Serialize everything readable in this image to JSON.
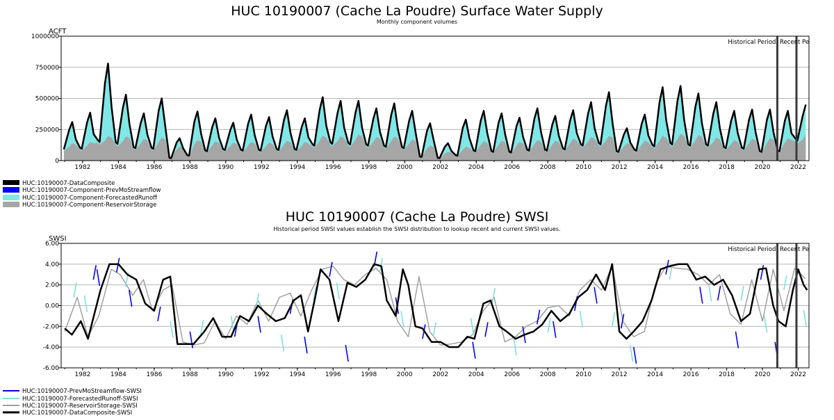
{
  "chart_data": [
    {
      "type": "area",
      "title": "HUC 10190007 (Cache La Poudre) Surface Water Supply",
      "subtitle": "Monthly component volumes",
      "ylabel": "ACFT",
      "ylim": [
        0,
        1000000
      ],
      "yticks": [
        "1000000",
        "750000",
        "500000",
        "250000",
        "0"
      ],
      "ytick_values": [
        1000000,
        750000,
        500000,
        250000,
        0
      ],
      "xlim": [
        1980.8,
        2022.6
      ],
      "xticks": [
        "1982",
        "1984",
        "1986",
        "1988",
        "1990",
        "1992",
        "1994",
        "1996",
        "1998",
        "2000",
        "2002",
        "2004",
        "2006",
        "2008",
        "2010",
        "2012",
        "2014",
        "2016",
        "2018",
        "2020",
        "2022"
      ],
      "period_lines": [
        2020.83,
        2021.9
      ],
      "period_labels": [
        "Historical Period",
        "Recent Pe"
      ],
      "grid": true,
      "legend_placement": "below",
      "annual_peaks": {
        "x": [
          1981,
          1982,
          1983,
          1984,
          1985,
          1986,
          1987,
          1988,
          1989,
          1990,
          1991,
          1992,
          1993,
          1994,
          1995,
          1996,
          1997,
          1998,
          1999,
          2000,
          2001,
          2002,
          2003,
          2004,
          2005,
          2006,
          2007,
          2008,
          2009,
          2010,
          2011,
          2012,
          2013,
          2014,
          2015,
          2016,
          2017,
          2018,
          2019,
          2020,
          2021,
          2022
        ],
        "composite_peak": [
          310000,
          385000,
          780000,
          530000,
          380000,
          500000,
          180000,
          395000,
          340000,
          305000,
          370000,
          350000,
          405000,
          340000,
          510000,
          480000,
          480000,
          420000,
          460000,
          400000,
          300000,
          140000,
          330000,
          400000,
          380000,
          345000,
          420000,
          360000,
          405000,
          470000,
          550000,
          260000,
          370000,
          590000,
          600000,
          540000,
          470000,
          400000,
          410000,
          410000,
          400000,
          450000
        ],
        "reservoir_storage_peak": [
          140000,
          150000,
          200000,
          195000,
          175000,
          185000,
          110000,
          165000,
          155000,
          145000,
          150000,
          145000,
          160000,
          150000,
          200000,
          195000,
          210000,
          190000,
          195000,
          170000,
          120000,
          70000,
          110000,
          155000,
          160000,
          150000,
          165000,
          160000,
          175000,
          190000,
          200000,
          140000,
          160000,
          200000,
          215000,
          205000,
          185000,
          165000,
          175000,
          180000,
          180000,
          210000
        ],
        "composite_trough": [
          90000,
          95000,
          150000,
          135000,
          100000,
          95000,
          20000,
          40000,
          75000,
          85000,
          80000,
          80000,
          85000,
          85000,
          120000,
          135000,
          130000,
          120000,
          110000,
          100000,
          30000,
          20000,
          40000,
          75000,
          70000,
          65000,
          80000,
          80000,
          90000,
          120000,
          130000,
          70000,
          80000,
          115000,
          130000,
          120000,
          120000,
          100000,
          95000,
          70000,
          75000,
          160000
        ]
      },
      "series": [
        {
          "name": "HUC:10190007-DataComposite",
          "color": "#000000"
        },
        {
          "name": "HUC:10190007-Component-PrevMoStreamflow",
          "color": "#0000ff"
        },
        {
          "name": "HUC:10190007-Component-ForecastedRunoff",
          "color": "#80e6e6"
        },
        {
          "name": "HUC:10190007-Component-ReservoirStorage",
          "color": "#a6a6a6"
        }
      ]
    },
    {
      "type": "line",
      "title": "HUC 10190007 (Cache La Poudre) SWSI",
      "subtitle": "Historical period SWSI values establish the SWSI distribution to lookup recent and current SWSI values.",
      "ylabel": "SWSI",
      "ylim": [
        -6,
        6
      ],
      "yticks": [
        "6.00",
        "4.00",
        "2.00",
        "0.00",
        "-2.00",
        "-4.00",
        "-6.00"
      ],
      "ytick_values": [
        6,
        4,
        2,
        0,
        -2,
        -4,
        -6
      ],
      "xlim": [
        1980.8,
        2022.6
      ],
      "xticks": [
        "1982",
        "1984",
        "1986",
        "1988",
        "1990",
        "1992",
        "1994",
        "1996",
        "1998",
        "2000",
        "2002",
        "2004",
        "2006",
        "2008",
        "2010",
        "2012",
        "2014",
        "2016",
        "2018",
        "2020",
        "2022"
      ],
      "period_lines": [
        2020.83,
        2021.9
      ],
      "period_labels": [
        "Historical Period",
        "Recent Pe"
      ],
      "grid": true,
      "legend_placement": "below",
      "series": [
        {
          "name": "HUC:10190007-PrevMoStreamflow-SWSI",
          "color": "#0000ff",
          "x": [
            1982.6,
            1982.8,
            1983.9,
            1984.6,
            1986.2,
            1988.0,
            1990.5,
            1991.8,
            1993.6,
            1994.4,
            1995.8,
            1996.7,
            1998.3,
            1999.5,
            2001.0,
            2003.8,
            2004.5,
            2006.6,
            2007.4,
            2008.3,
            2009.5,
            2010.6,
            2012.1,
            2012.8,
            2014.6,
            2016.5,
            2017.5,
            2018.5,
            2019.9,
            2020.7
          ],
          "y": [
            2.5,
            3.5,
            3.2,
            1.5,
            -1.5,
            -2.5,
            -3.0,
            -1.0,
            -0.8,
            -3.0,
            2.8,
            -3.8,
            3.8,
            0.8,
            -3.2,
            -3.5,
            -3.0,
            -2.0,
            -1.8,
            -1.5,
            -0.5,
            1.8,
            -2.2,
            -4.0,
            3.0,
            1.8,
            0.5,
            -2.5,
            2.5,
            -3.5
          ]
        },
        {
          "name": "HUC:10190007-ForecastedRunoff-SWSI",
          "color": "#7fe0e0",
          "x": [
            1981.5,
            1982.1,
            1984.4,
            1986.9,
            1988.6,
            1990.3,
            1991.7,
            1993.1,
            1994.9,
            1996.2,
            1998.6,
            1999.8,
            2001.6,
            2003.7,
            2004.9,
            2006.1,
            2008.0,
            2009.8,
            2011.6,
            2012.6,
            2014.8,
            2017.0,
            2018.8,
            2020.1,
            2021.2,
            2022.3
          ],
          "y": [
            0.8,
            1.0,
            1.8,
            -1.5,
            -2.8,
            -1.0,
            -0.2,
            -2.8,
            0.5,
            2.2,
            3.2,
            -0.5,
            -3.0,
            -1.2,
            0.3,
            -3.2,
            -2.6,
            -0.5,
            -2.0,
            -3.8,
            2.5,
            2.0,
            0.5,
            -1.0,
            1.5,
            -0.4
          ]
        },
        {
          "name": "HUC:10190007-ReservoirStorage-SWSI",
          "color": "#a0a0a0",
          "x": [
            1981.0,
            1981.7,
            1982.3,
            1982.9,
            1983.6,
            1984.1,
            1984.8,
            1985.4,
            1985.9,
            1986.5,
            1987.0,
            1987.6,
            1988.2,
            1988.8,
            1989.4,
            1990.0,
            1990.6,
            1991.2,
            1991.8,
            1992.4,
            1993.0,
            1993.6,
            1994.2,
            1994.8,
            1995.4,
            1996.0,
            1996.6,
            1997.2,
            1997.8,
            1998.4,
            1999.0,
            1999.6,
            2000.2,
            2000.8,
            2001.4,
            2002.0,
            2002.6,
            2003.2,
            2003.8,
            2004.4,
            2005.0,
            2005.6,
            2006.2,
            2006.8,
            2007.4,
            2008.0,
            2008.6,
            2009.2,
            2009.8,
            2010.4,
            2011.0,
            2011.6,
            2012.2,
            2012.8,
            2013.4,
            2014.0,
            2014.6,
            2015.2,
            2015.8,
            2016.4,
            2017.0,
            2017.6,
            2018.2,
            2018.8,
            2019.4,
            2020.0,
            2020.6,
            2021.2,
            2021.8,
            2022.4
          ],
          "y": [
            -2.5,
            0.8,
            -3.0,
            -1.0,
            3.5,
            3.0,
            1.0,
            2.5,
            -0.5,
            1.5,
            2.0,
            -3.5,
            -3.8,
            -3.6,
            -1.5,
            -3.2,
            -1.0,
            -1.8,
            0.5,
            -1.5,
            0.8,
            1.2,
            -1.0,
            1.5,
            3.5,
            3.8,
            2.5,
            2.0,
            3.0,
            3.6,
            2.5,
            -1.5,
            -3.0,
            2.8,
            -2.5,
            -3.8,
            -3.7,
            -3.5,
            -2.8,
            -0.5,
            0.8,
            -3.5,
            -3.0,
            -2.0,
            -1.5,
            -0.2,
            0.0,
            -1.0,
            1.5,
            2.5,
            1.5,
            3.8,
            -1.5,
            -3.0,
            -2.5,
            2.0,
            3.8,
            3.6,
            3.5,
            3.0,
            2.0,
            3.0,
            -0.8,
            -1.8,
            2.5,
            -1.5,
            3.5,
            -0.5,
            3.6,
            2.6
          ]
        },
        {
          "name": "HUC:10190007-DataComposite-SWSI",
          "color": "#000000",
          "x": [
            1981.0,
            1981.4,
            1981.9,
            1982.3,
            1982.7,
            1983.0,
            1983.5,
            1984.0,
            1984.5,
            1985.0,
            1985.5,
            1986.0,
            1986.5,
            1986.9,
            1987.3,
            1987.9,
            1988.2,
            1988.8,
            1989.3,
            1989.8,
            1990.3,
            1990.8,
            1991.3,
            1991.8,
            1992.3,
            1992.8,
            1993.3,
            1993.8,
            1994.2,
            1994.6,
            1995.0,
            1995.3,
            1995.8,
            1996.3,
            1996.8,
            1997.3,
            1997.8,
            1998.3,
            1998.7,
            1999.0,
            1999.5,
            1999.9,
            2000.2,
            2000.6,
            2001.0,
            2001.5,
            2002.0,
            2002.5,
            2003.0,
            2003.5,
            2003.9,
            2004.4,
            2004.8,
            2005.3,
            2005.7,
            2006.2,
            2006.7,
            2007.2,
            2007.7,
            2008.2,
            2008.7,
            2009.2,
            2009.7,
            2010.2,
            2010.7,
            2011.2,
            2011.6,
            2012.0,
            2012.4,
            2012.8,
            2013.3,
            2013.8,
            2014.3,
            2014.8,
            2015.3,
            2015.8,
            2016.3,
            2016.8,
            2017.3,
            2017.8,
            2018.3,
            2018.8,
            2019.3,
            2019.8,
            2020.2,
            2020.6,
            2020.9,
            2021.3,
            2021.7,
            2022.0,
            2022.3,
            2022.5
          ],
          "y": [
            -2.2,
            -2.8,
            -1.5,
            -3.2,
            -0.5,
            1.5,
            4.0,
            4.0,
            3.0,
            2.5,
            0.2,
            -0.5,
            2.5,
            2.8,
            -3.7,
            -3.7,
            -3.7,
            -2.5,
            -1.2,
            -3.0,
            -3.0,
            -1.0,
            -1.5,
            0.0,
            -0.8,
            -1.5,
            -1.2,
            0.5,
            1.0,
            -2.5,
            0.8,
            3.5,
            2.5,
            -1.5,
            2.2,
            1.8,
            2.5,
            4.0,
            3.8,
            0.5,
            -1.0,
            3.5,
            2.0,
            -2.0,
            -2.2,
            -3.5,
            -3.5,
            -4.0,
            -4.0,
            -3.0,
            -3.2,
            0.2,
            0.5,
            -2.0,
            -2.5,
            -3.2,
            -2.8,
            -2.5,
            -1.8,
            -0.5,
            -1.5,
            -0.8,
            0.8,
            1.5,
            3.0,
            1.5,
            4.0,
            -2.5,
            -3.2,
            -2.5,
            -1.5,
            0.5,
            3.5,
            3.8,
            4.0,
            4.0,
            2.5,
            2.8,
            2.0,
            2.5,
            1.0,
            -1.5,
            -0.8,
            3.5,
            3.6,
            0.0,
            -1.5,
            -2.0,
            1.5,
            3.5,
            2.0,
            1.5
          ]
        }
      ]
    }
  ]
}
